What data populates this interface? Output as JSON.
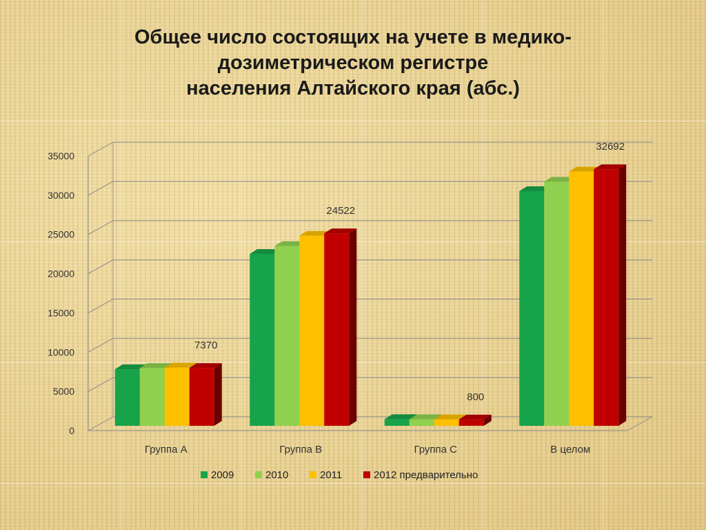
{
  "slide": {
    "title_lines": [
      "Общее число состоящих на учете в медико-",
      "дозиметрическом регистре",
      "населения Алтайского края (абс.)"
    ]
  },
  "chart_data": {
    "type": "bar",
    "title": "Общее число состоящих на учете в медико-дозиметрическом регистре населения Алтайского края (абс.)",
    "categories": [
      "Группа А",
      "Группа В",
      "Группа С",
      "В целом"
    ],
    "series": [
      {
        "name": "2009",
        "color": "#17a349",
        "values": [
          7200,
          21900,
          850,
          29900
        ]
      },
      {
        "name": "2010",
        "color": "#8fd14f",
        "values": [
          7370,
          22900,
          830,
          31100
        ]
      },
      {
        "name": "2011",
        "color": "#ffc000",
        "values": [
          7420,
          24200,
          820,
          32400
        ]
      },
      {
        "name": "2012 предварительно",
        "color": "#c00000",
        "values": [
          7370,
          24522,
          800,
          32692
        ]
      }
    ],
    "data_labels": [
      {
        "category": "Группа А",
        "series": "2012 предварительно",
        "text": "7370"
      },
      {
        "category": "Группа В",
        "series": "2012 предварительно",
        "text": "24522"
      },
      {
        "category": "Группа С",
        "series": "2012 предварительно",
        "text": "800"
      },
      {
        "category": "В целом",
        "series": "2012 предварительно",
        "text": "32692"
      }
    ],
    "ylim": [
      0,
      35000
    ],
    "yticks": [
      0,
      5000,
      10000,
      15000,
      20000,
      25000,
      30000,
      35000
    ],
    "grid": true,
    "legend": "bottom",
    "style": "3d-clustered-column"
  }
}
